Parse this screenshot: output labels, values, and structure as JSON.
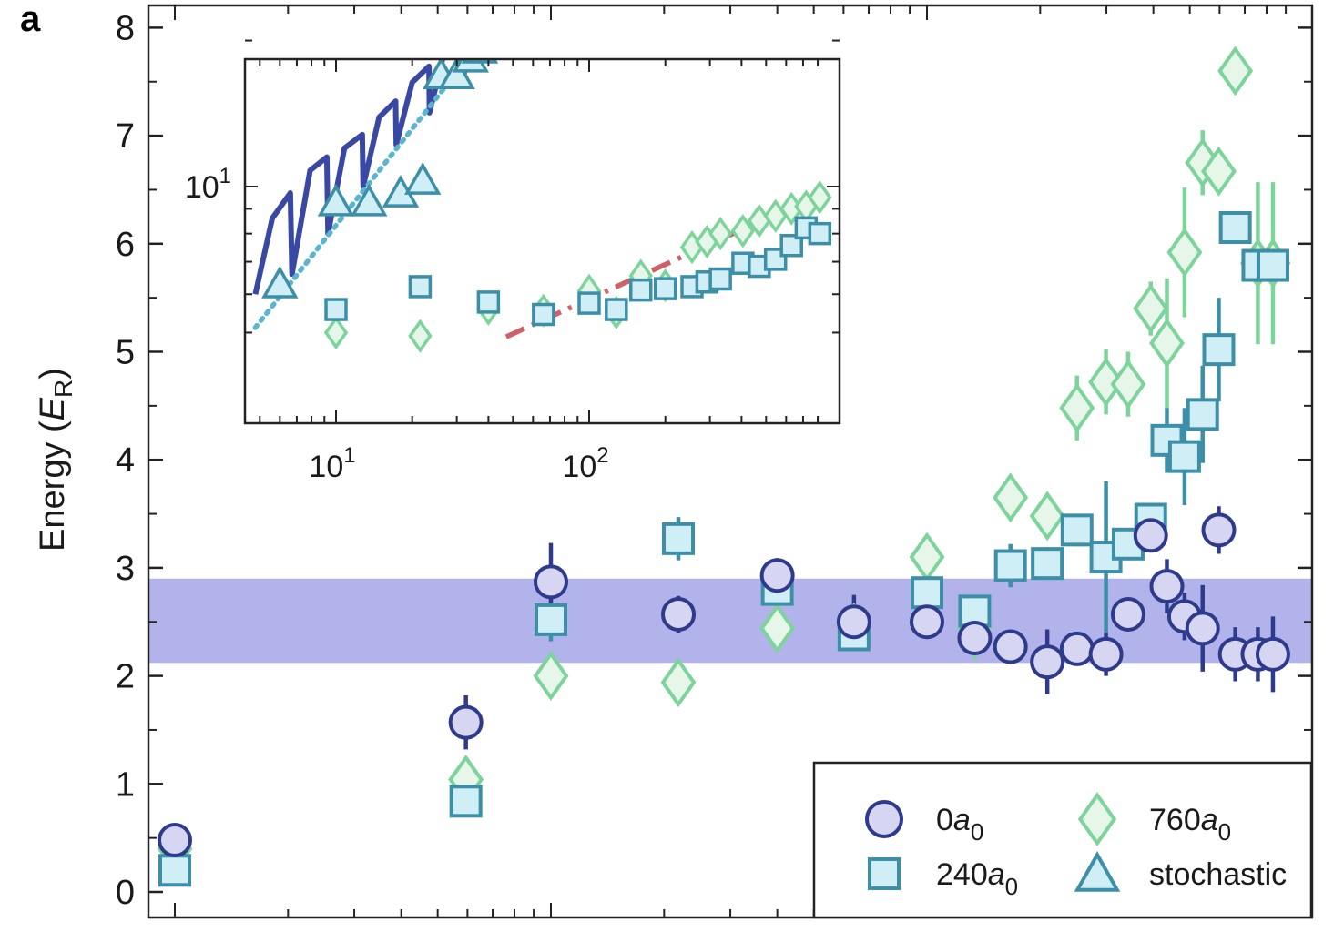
{
  "panel_label": "a",
  "chart_data": [
    {
      "id": "main",
      "type": "scatter",
      "ylabel": "Energy (E_R)",
      "ylabel_parts": {
        "prefix": "Energy (",
        "var": "E",
        "sub": "R",
        "suffix": ")"
      },
      "ylim": [
        0,
        8.2
      ],
      "yticks": [
        0,
        1,
        2,
        3,
        4,
        5,
        6,
        7,
        8
      ],
      "ytick_labels": [
        "0",
        "1",
        "2",
        "3",
        "4",
        "5",
        "6",
        "7",
        "8"
      ],
      "xlim": [
        -0.07,
        3.0
      ],
      "x_tick_labels_shown": false,
      "band": {
        "y0": 2.12,
        "y1": 2.9,
        "color": "#b3b3ec"
      },
      "legend": {
        "placement": "bottom-right",
        "entries": [
          {
            "marker": "circle",
            "label_main": "0",
            "label_var": "a",
            "label_sub": "0"
          },
          {
            "marker": "square",
            "label_main": "240",
            "label_var": "a",
            "label_sub": "0"
          },
          {
            "marker": "diamond",
            "label_main": "760",
            "label_var": "a",
            "label_sub": "0"
          },
          {
            "marker": "triangle",
            "label_main": "stochastic",
            "label_var": "",
            "label_sub": ""
          }
        ]
      },
      "series": [
        {
          "name": "0a0",
          "marker": "circle",
          "stroke": "#2e3a8c",
          "fill": "#d6d6f2",
          "x": [
            0.0,
            0.774,
            1.0,
            1.339,
            1.602,
            1.806,
            2.0,
            2.127,
            2.222,
            2.32,
            2.399,
            2.476,
            2.535,
            2.595,
            2.638,
            2.685,
            2.733,
            2.776,
            2.82,
            2.88,
            2.92
          ],
          "y": [
            0.48,
            1.57,
            2.87,
            2.57,
            2.93,
            2.5,
            2.5,
            2.35,
            2.27,
            2.13,
            2.25,
            2.2,
            2.57,
            3.3,
            2.83,
            2.55,
            2.44,
            3.35,
            2.2,
            2.2,
            2.2
          ],
          "err": [
            0.12,
            0.25,
            0.36,
            0.17,
            0.16,
            0.25,
            0.1,
            0.12,
            0.06,
            0.3,
            0.1,
            0.2,
            0.15,
            0.1,
            0.25,
            0.22,
            0.4,
            0.22,
            0.25,
            0.25,
            0.35
          ]
        },
        {
          "name": "240a0",
          "marker": "square",
          "stroke": "#3d8fa8",
          "fill": "#cfeef5",
          "x": [
            0.0,
            0.774,
            1.0,
            1.339,
            1.602,
            1.806,
            2.0,
            2.127,
            2.222,
            2.32,
            2.399,
            2.476,
            2.535,
            2.595,
            2.638,
            2.685,
            2.733,
            2.776,
            2.82,
            2.88,
            2.92
          ],
          "y": [
            0.2,
            0.84,
            2.52,
            3.27,
            2.8,
            2.38,
            2.77,
            2.6,
            3.02,
            3.04,
            3.35,
            3.1,
            3.22,
            3.45,
            4.18,
            4.03,
            4.42,
            5.02,
            6.15,
            5.8,
            5.8
          ],
          "err": [
            0.08,
            0.08,
            0.2,
            0.2,
            0.15,
            0.08,
            0.1,
            0.15,
            0.2,
            0.15,
            0.15,
            0.7,
            0.15,
            0.15,
            0.3,
            0.45,
            0.45,
            0.48,
            0.15,
            0.15,
            0.1
          ]
        },
        {
          "name": "760a0",
          "marker": "diamond",
          "stroke": "#7dd49a",
          "fill": "#e6f7ea",
          "x": [
            0.0,
            0.774,
            1.0,
            1.339,
            1.602,
            1.806,
            2.0,
            2.127,
            2.222,
            2.32,
            2.399,
            2.476,
            2.535,
            2.595,
            2.638,
            2.685,
            2.733,
            2.776,
            2.82,
            2.88,
            2.92
          ],
          "y": [
            0.4,
            1.04,
            2.0,
            1.94,
            2.44,
            2.45,
            3.1,
            2.45,
            3.65,
            3.48,
            4.48,
            4.72,
            4.7,
            5.4,
            5.08,
            5.92,
            6.75,
            6.67,
            7.6,
            5.82,
            5.82
          ],
          "err": [
            0.1,
            0.1,
            0.12,
            0.12,
            0.12,
            0.15,
            0.15,
            0.3,
            0.2,
            0.2,
            0.3,
            0.3,
            0.3,
            0.25,
            0.6,
            0.6,
            0.3,
            0.15,
            0.2,
            0.75,
            0.75
          ]
        }
      ]
    },
    {
      "id": "inset",
      "type": "scatter",
      "x_scale": "log",
      "y_scale": "log",
      "xlim": [
        4.7,
        870
      ],
      "ylim": [
        4.9,
        22.5
      ],
      "xtick_labels": [
        {
          "value": 10,
          "base": "10",
          "exp": "1"
        },
        {
          "value": 100,
          "base": "10",
          "exp": "2"
        }
      ],
      "ytick_labels": [
        {
          "value": 10,
          "base": "10",
          "exp": "1"
        }
      ],
      "lines": [
        {
          "name": "solid",
          "style": "solid",
          "color": "#3949a3",
          "x": [
            4.8,
            5.6,
            6.6,
            6.7,
            7.9,
            9.2,
            9.3,
            10.8,
            12.7,
            12.8,
            14.8,
            17.2,
            17.3,
            20.0,
            23.3,
            23.4,
            27.0,
            31.5,
            31.6,
            36.0,
            41.0
          ],
          "y": [
            6.0,
            8.6,
            9.7,
            6.6,
            10.8,
            11.5,
            8.0,
            12.0,
            12.8,
            10.0,
            13.9,
            15.0,
            12.2,
            16.4,
            17.7,
            14.2,
            19.3,
            20.7,
            16.6,
            21.8,
            22.5
          ]
        },
        {
          "name": "dotted",
          "style": "dotted",
          "color": "#5bb5cf",
          "x": [
            4.8,
            45.0
          ],
          "y": [
            5.12,
            22.5
          ]
        },
        {
          "name": "dashdot",
          "style": "dashdot",
          "color": "#cf6067",
          "x": [
            47.0,
            870.0
          ],
          "y": [
            4.9,
            9.8
          ]
        }
      ],
      "series": [
        {
          "name": "stochastic",
          "marker": "triangle",
          "stroke": "#3d8fa8",
          "fill": "#cfeef5",
          "x": [
            6.0,
            10.0,
            13.5,
            18.0,
            22.0,
            26.0,
            30.0,
            34.0,
            37.0,
            40.5
          ],
          "y": [
            6.3,
            9.3,
            9.3,
            9.7,
            10.3,
            17.0,
            17.0,
            18.4,
            19.2,
            20.6
          ]
        },
        {
          "name": "240a0",
          "marker": "square",
          "stroke": "#3d8fa8",
          "fill": "#cfeef5",
          "x": [
            10.0,
            21.5,
            40.0,
            66.0,
            100.0,
            128.0,
            160.0,
            200.0,
            255.0,
            292.0,
            330.0,
            405.0,
            470.0,
            545.0,
            630.0,
            720.0,
            815.0
          ],
          "y": [
            5.58,
            6.22,
            5.78,
            5.45,
            5.75,
            5.58,
            6.12,
            6.16,
            6.22,
            6.36,
            6.45,
            6.95,
            6.85,
            7.08,
            7.56,
            8.22,
            8.0
          ]
        },
        {
          "name": "760a0",
          "marker": "diamond",
          "stroke": "#7dd49a",
          "fill": "#e6f7ea",
          "x": [
            10.0,
            21.5,
            40.0,
            66.0,
            100.0,
            128.0,
            160.0,
            200.0,
            255.0,
            292.0,
            330.0,
            405.0,
            470.0,
            545.0,
            630.0,
            720.0,
            815.0
          ],
          "y": [
            5.0,
            4.92,
            5.6,
            5.55,
            6.1,
            5.5,
            6.55,
            6.25,
            7.5,
            7.7,
            8.0,
            8.1,
            8.5,
            8.7,
            9.0,
            9.1,
            9.5
          ]
        }
      ]
    }
  ]
}
